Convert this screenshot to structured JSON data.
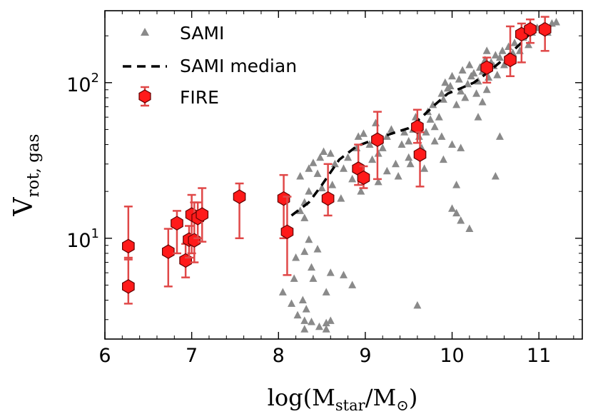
{
  "chart_data": {
    "type": "scatter",
    "xlabel": "log(M_star/M_⊙)",
    "xlabel_parts": {
      "prefix": "log(M",
      "sub1": "star",
      "mid": "/M",
      "sub2": "⊙",
      "suffix": ")"
    },
    "ylabel": "V_rot, gas",
    "ylabel_parts": {
      "main": "V",
      "sub": "rot, gas"
    },
    "xlim": [
      6,
      11.5
    ],
    "ylim": [
      2.25,
      290
    ],
    "yscale": "log",
    "grid": false,
    "legend_position": "top-left",
    "x_ticks": [
      {
        "value": 6,
        "label": "6"
      },
      {
        "value": 7,
        "label": "7"
      },
      {
        "value": 8,
        "label": "8"
      },
      {
        "value": 9,
        "label": "9"
      },
      {
        "value": 10,
        "label": "10"
      },
      {
        "value": 11,
        "label": "11"
      }
    ],
    "y_major_ticks": [
      {
        "value": 10,
        "base": "10",
        "exp": "1"
      },
      {
        "value": 100,
        "base": "10",
        "exp": "2"
      }
    ],
    "legend": [
      {
        "label": "SAMI",
        "marker": "triangle",
        "color": "#8a8a8a"
      },
      {
        "label": "SAMI median",
        "marker": "dashed-line",
        "color": "#000000"
      },
      {
        "label": "FIRE",
        "marker": "hexagon",
        "color": "#ff1a1a"
      }
    ],
    "series": [
      {
        "name": "SAMI",
        "color": "#8a8a8a",
        "points": [
          [
            8.05,
            4.5
          ],
          [
            8.15,
            3.8
          ],
          [
            8.22,
            3.2
          ],
          [
            8.3,
            2.95
          ],
          [
            8.32,
            3.5
          ],
          [
            8.3,
            2.6
          ],
          [
            8.38,
            2.9
          ],
          [
            8.47,
            2.7
          ],
          [
            8.55,
            2.6
          ],
          [
            8.55,
            2.85
          ],
          [
            8.6,
            2.95
          ],
          [
            8.2,
            7.5
          ],
          [
            8.3,
            8.2
          ],
          [
            8.38,
            6.5
          ],
          [
            8.4,
            5.5
          ],
          [
            8.45,
            8.5
          ],
          [
            8.55,
            4.5
          ],
          [
            8.6,
            6.0
          ],
          [
            8.75,
            5.8
          ],
          [
            8.85,
            5.0
          ],
          [
            8.35,
            9.8
          ],
          [
            8.3,
            13.5
          ],
          [
            8.25,
            15.0
          ],
          [
            8.3,
            17.0
          ],
          [
            8.35,
            20.0
          ],
          [
            8.25,
            25.0
          ],
          [
            8.35,
            28.0
          ],
          [
            8.4,
            30.5
          ],
          [
            8.45,
            26.0
          ],
          [
            8.5,
            21.0
          ],
          [
            8.48,
            33.0
          ],
          [
            8.52,
            36.0
          ],
          [
            8.6,
            35.0
          ],
          [
            8.65,
            30.0
          ],
          [
            8.62,
            22.0
          ],
          [
            8.72,
            18.0
          ],
          [
            8.75,
            28.0
          ],
          [
            8.8,
            33.0
          ],
          [
            8.85,
            24.0
          ],
          [
            8.9,
            38.0
          ],
          [
            8.92,
            45.0
          ],
          [
            8.98,
            47.0
          ],
          [
            9.05,
            40.0
          ],
          [
            9.08,
            32.0
          ],
          [
            9.12,
            55.0
          ],
          [
            9.15,
            35.0
          ],
          [
            9.2,
            38.0
          ],
          [
            9.25,
            45.0
          ],
          [
            9.3,
            50.0
          ],
          [
            9.35,
            30.0
          ],
          [
            9.38,
            25.0
          ],
          [
            9.42,
            40.0
          ],
          [
            9.45,
            48.0
          ],
          [
            9.5,
            42.0
          ],
          [
            9.52,
            30.0
          ],
          [
            9.55,
            50.0
          ],
          [
            9.58,
            60.0
          ],
          [
            9.6,
            55.0
          ],
          [
            9.62,
            45.0
          ],
          [
            9.65,
            38.0
          ],
          [
            9.68,
            28.0
          ],
          [
            9.7,
            48.0
          ],
          [
            9.72,
            65.0
          ],
          [
            9.75,
            58.0
          ],
          [
            9.78,
            72.0
          ],
          [
            9.8,
            52.0
          ],
          [
            9.85,
            60.0
          ],
          [
            9.88,
            85.0
          ],
          [
            9.9,
            78.0
          ],
          [
            9.92,
            100.0
          ],
          [
            9.95,
            92.0
          ],
          [
            9.98,
            95.0
          ],
          [
            10.0,
            110.0
          ],
          [
            10.05,
            72.0
          ],
          [
            10.08,
            105.0
          ],
          [
            10.1,
            88.0
          ],
          [
            10.12,
            120.0
          ],
          [
            10.15,
            80.0
          ],
          [
            10.18,
            98.0
          ],
          [
            10.2,
            130.0
          ],
          [
            10.22,
            110.0
          ],
          [
            10.25,
            115.0
          ],
          [
            10.28,
            85.0
          ],
          [
            10.3,
            102.0
          ],
          [
            10.32,
            125.0
          ],
          [
            10.35,
            118.0
          ],
          [
            10.38,
            140.0
          ],
          [
            10.4,
            90.0
          ],
          [
            10.42,
            108.0
          ],
          [
            10.45,
            135.0
          ],
          [
            10.48,
            128.0
          ],
          [
            10.5,
            150.0
          ],
          [
            10.52,
            112.0
          ],
          [
            10.55,
            145.0
          ],
          [
            10.58,
            160.0
          ],
          [
            10.6,
            130.0
          ],
          [
            10.65,
            170.0
          ],
          [
            10.7,
            155.0
          ],
          [
            10.72,
            180.0
          ],
          [
            10.78,
            160.0
          ],
          [
            10.82,
            195.0
          ],
          [
            10.88,
            175.0
          ],
          [
            10.92,
            210.0
          ],
          [
            10.98,
            225.0
          ],
          [
            11.05,
            230.0
          ],
          [
            11.1,
            210.0
          ],
          [
            11.15,
            240.0
          ],
          [
            11.2,
            245.0
          ],
          [
            9.8,
            42.0
          ],
          [
            9.9,
            32.0
          ],
          [
            10.0,
            40.0
          ],
          [
            10.05,
            22.0
          ],
          [
            10.1,
            38.0
          ],
          [
            10.0,
            15.5
          ],
          [
            10.05,
            14.5
          ],
          [
            10.1,
            13.0
          ],
          [
            10.2,
            11.5
          ],
          [
            10.5,
            25.0
          ],
          [
            10.55,
            45.0
          ],
          [
            9.6,
            3.7
          ],
          [
            8.18,
            5.5
          ],
          [
            8.28,
            4.0
          ],
          [
            9.5,
            33.0
          ],
          [
            9.25,
            27.0
          ],
          [
            9.15,
            23.0
          ],
          [
            8.95,
            20.0
          ],
          [
            10.3,
            60.0
          ],
          [
            10.35,
            75.0
          ],
          [
            9.88,
            45.0
          ],
          [
            10.4,
            160.0
          ]
        ]
      },
      {
        "name": "SAMI median",
        "color": "#000000",
        "points": [
          [
            8.15,
            14.0
          ],
          [
            8.35,
            17.0
          ],
          [
            8.5,
            22.0
          ],
          [
            8.7,
            32.0
          ],
          [
            8.9,
            39.0
          ],
          [
            9.1,
            43.0
          ],
          [
            9.3,
            47.0
          ],
          [
            9.5,
            51.0
          ],
          [
            9.65,
            60.0
          ],
          [
            9.8,
            72.0
          ],
          [
            9.95,
            85.0
          ],
          [
            10.1,
            92.0
          ],
          [
            10.25,
            100.0
          ],
          [
            10.4,
            115.0
          ],
          [
            10.55,
            135.0
          ],
          [
            10.7,
            160.0
          ],
          [
            10.82,
            185.0
          ],
          [
            10.92,
            215.0
          ]
        ]
      },
      {
        "name": "FIRE",
        "color": "#ff1a1a",
        "points": [
          {
            "x": 6.27,
            "y": 4.9,
            "lo": 3.8,
            "hi": 7.5
          },
          {
            "x": 6.27,
            "y": 8.9,
            "lo": 7.3,
            "hi": 16.0
          },
          {
            "x": 6.73,
            "y": 8.2,
            "lo": 4.9,
            "hi": 11.5
          },
          {
            "x": 6.83,
            "y": 12.5,
            "lo": 8.0,
            "hi": 15.0
          },
          {
            "x": 6.93,
            "y": 7.2,
            "lo": 5.6,
            "hi": 9.2
          },
          {
            "x": 6.97,
            "y": 9.8,
            "lo": 7.5,
            "hi": 12.0
          },
          {
            "x": 7.0,
            "y": 14.2,
            "lo": 8.0,
            "hi": 19.0
          },
          {
            "x": 7.03,
            "y": 9.7,
            "lo": 7.0,
            "hi": 17.0
          },
          {
            "x": 7.07,
            "y": 13.5,
            "lo": 10.0,
            "hi": 17.0
          },
          {
            "x": 7.12,
            "y": 14.2,
            "lo": 9.5,
            "hi": 21.0
          },
          {
            "x": 7.55,
            "y": 18.5,
            "lo": 10.0,
            "hi": 22.5
          },
          {
            "x": 8.06,
            "y": 18.0,
            "lo": 10.0,
            "hi": 25.5
          },
          {
            "x": 8.1,
            "y": 11.0,
            "lo": 5.8,
            "hi": 18.5
          },
          {
            "x": 8.57,
            "y": 18.0,
            "lo": 14.0,
            "hi": 30.0
          },
          {
            "x": 8.92,
            "y": 28.0,
            "lo": 22.0,
            "hi": 40.0
          },
          {
            "x": 8.98,
            "y": 24.5,
            "lo": 21.0,
            "hi": 29.0
          },
          {
            "x": 9.14,
            "y": 43.0,
            "lo": 24.0,
            "hi": 65.0
          },
          {
            "x": 9.6,
            "y": 52.0,
            "lo": 41.0,
            "hi": 67.0
          },
          {
            "x": 9.63,
            "y": 34.5,
            "lo": 21.5,
            "hi": 48.0
          },
          {
            "x": 10.4,
            "y": 125.0,
            "lo": 100.0,
            "hi": 145.0
          },
          {
            "x": 10.67,
            "y": 140.0,
            "lo": 110.0,
            "hi": 230.0
          },
          {
            "x": 10.8,
            "y": 205.0,
            "lo": 135.0,
            "hi": 240.0
          },
          {
            "x": 10.9,
            "y": 220.0,
            "lo": 180.0,
            "hi": 255.0
          },
          {
            "x": 11.07,
            "y": 220.0,
            "lo": 160.0,
            "hi": 265.0
          }
        ]
      }
    ]
  }
}
